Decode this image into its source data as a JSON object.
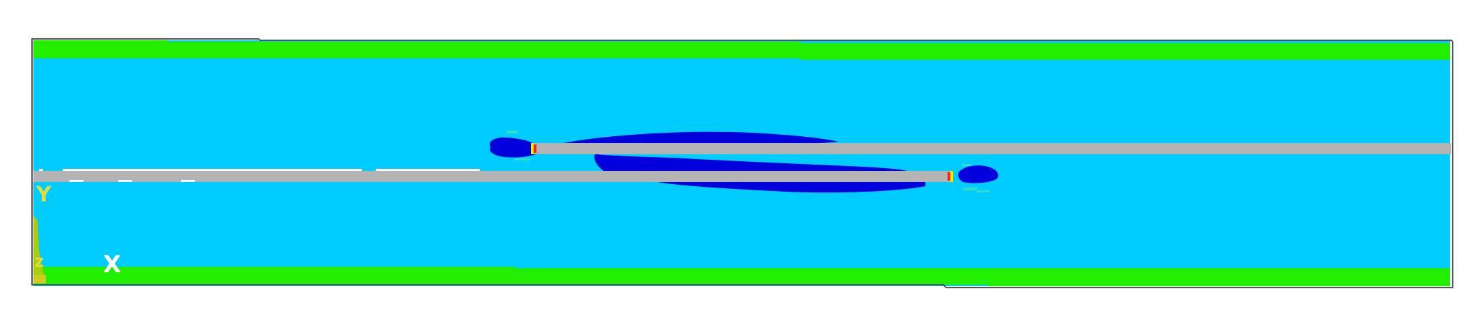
{
  "figure": {
    "axis_labels": {
      "y": "Y",
      "x": "X",
      "z": "Z"
    },
    "colors": {
      "background": "#ffffff",
      "frame": "#555555",
      "base_band": "#00ccff",
      "edge_band": "#22ee00",
      "crack": "#b4b4b4",
      "low_zone": "#0000dd",
      "halo": "#33ddcc",
      "tip_yellow": "#eeee00",
      "tip_red": "#ff2200",
      "axis_text_light": "#ffffff",
      "axis_text_yellow": "#dddd44",
      "axis_marker": "#aacc11"
    }
  }
}
